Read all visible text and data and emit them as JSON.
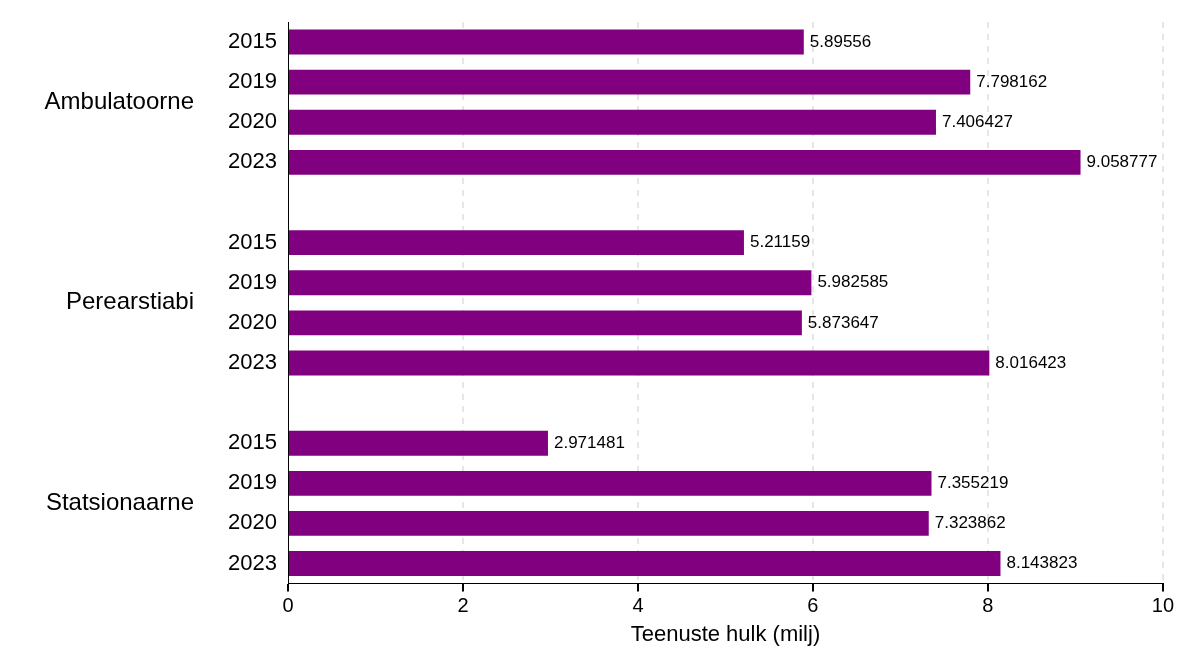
{
  "chart_data": {
    "type": "bar",
    "orientation": "horizontal",
    "xlabel": "Teenuste hulk (milj)",
    "categories": [
      "2015",
      "2019",
      "2020",
      "2023",
      null,
      "2015",
      "2019",
      "2020",
      "2023",
      null,
      "2015",
      "2019",
      "2020",
      "2023"
    ],
    "values": [
      5.89556,
      7.798162,
      7.406427,
      9.058777,
      null,
      5.21159,
      5.982585,
      5.873647,
      8.016423,
      null,
      2.971481,
      7.355219,
      7.323862,
      8.143823
    ],
    "color": "#800080",
    "xlim": [
      0,
      10
    ],
    "xticks": [
      0,
      2,
      4,
      6,
      8,
      10
    ],
    "grid": "x",
    "data_labels": true,
    "legend": false,
    "annotations": [
      "Ambulatoorne",
      "Perearstiabi",
      "Statsionaarne"
    ]
  }
}
